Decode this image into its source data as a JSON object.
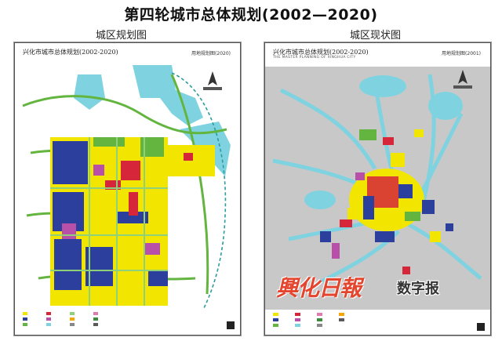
{
  "header": {
    "title": "第四轮城市总体规划(2002—2020)"
  },
  "panels": {
    "left": {
      "caption": "城区规划图",
      "map_title": "兴化市城市总体规划(2002-2020)",
      "map_subtitle": "用地规划图(2020)"
    },
    "right": {
      "caption": "城区现状图",
      "map_title": "兴化市城市总体规划(2002-2020)",
      "map_subtitle": "用地规划图(2001)",
      "map_title_en": "THE MASTER PLANNING OF XINGHUA CITY"
    }
  },
  "watermark": {
    "brand": "興化日報",
    "tag": "数字报"
  },
  "colors": {
    "water": "#7fd3e0",
    "residential": "#f2e600",
    "industrial": "#2c3f9c",
    "green": "#63b53f",
    "commercial": "#d6263a",
    "public": "#b84fa8",
    "road": "#8fd07a",
    "background_status": "#c8c8c8"
  }
}
